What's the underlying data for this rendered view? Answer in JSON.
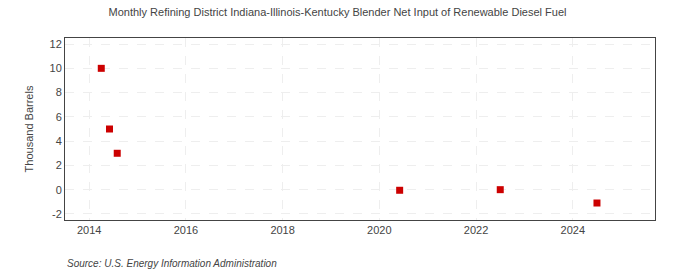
{
  "chart_data": {
    "type": "scatter",
    "title": "Monthly Refining District Indiana-Illinois-Kentucky Blender Net Input of Renewable Diesel Fuel",
    "ylabel": "Thousand Barrels",
    "annotations": [
      "Source: U.S. Energy Information Administration"
    ],
    "x": [
      2014.25,
      2014.42,
      2014.58,
      2020.42,
      2022.5,
      2024.5
    ],
    "values": [
      10,
      5,
      3,
      -0.05,
      0,
      -1.1
    ],
    "color": "#cc0000",
    "marker": "square",
    "xlim": [
      2013.5,
      2025.7
    ],
    "xticks": [
      2014,
      2016,
      2018,
      2020,
      2022,
      2024
    ],
    "ylim": [
      -2.5,
      12.5
    ],
    "yticks": [
      -2,
      0,
      2,
      4,
      6,
      8,
      10,
      12
    ],
    "grid": true
  }
}
